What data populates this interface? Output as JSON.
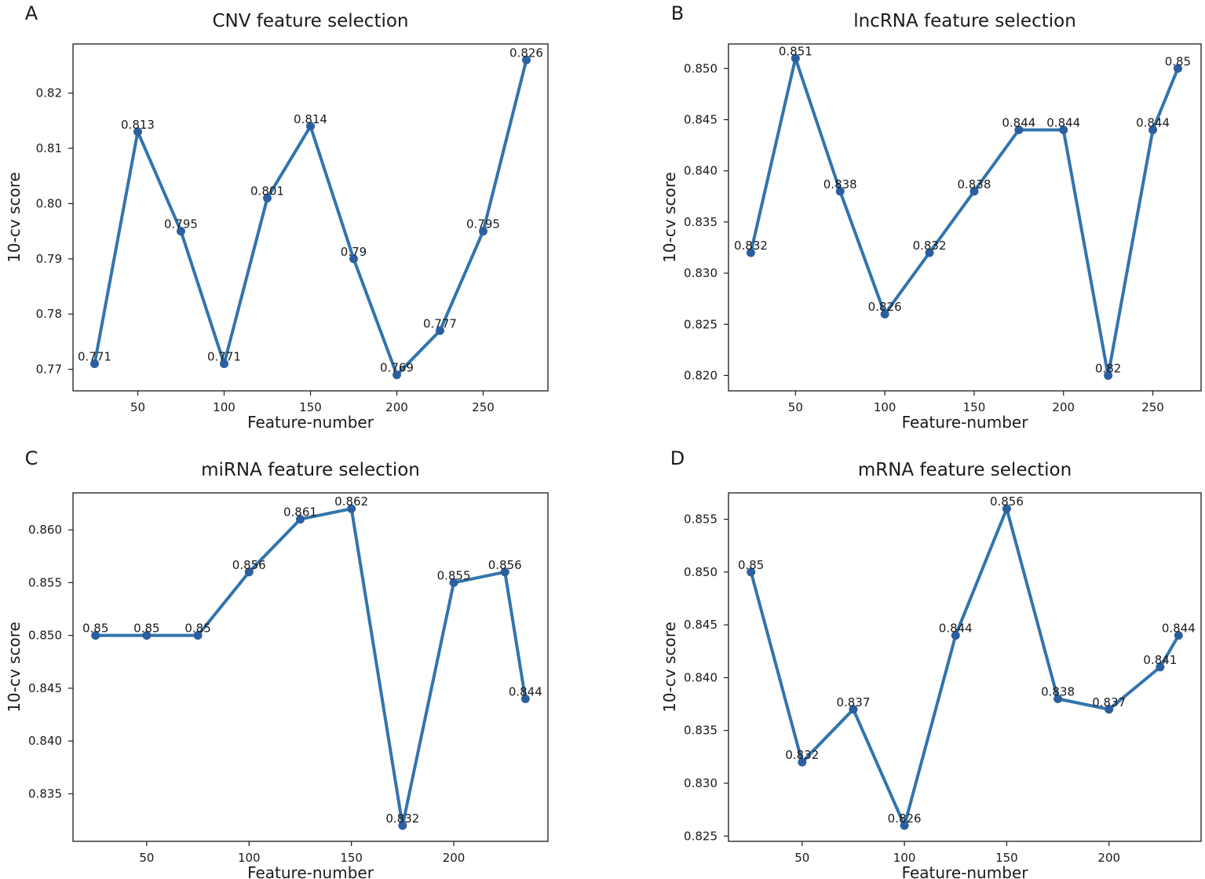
{
  "colors": {
    "line": "#3274ad",
    "marker": "#2c5fa0",
    "text": "#1a1a1a"
  },
  "chart_data": [
    {
      "panel": "A",
      "type": "line",
      "title": "CNV feature selection",
      "xlabel": "Feature-number",
      "ylabel": "10-cv score",
      "x": [
        25,
        50,
        75,
        100,
        125,
        150,
        175,
        200,
        225,
        250,
        275
      ],
      "y": [
        0.771,
        0.813,
        0.795,
        0.771,
        0.801,
        0.814,
        0.79,
        0.769,
        0.777,
        0.795,
        0.826
      ],
      "point_labels": [
        "0.771",
        "0.813",
        "0.795",
        "0.771",
        "0.801",
        "0.814",
        "0.79",
        "0.769",
        "0.777",
        "0.795",
        "0.826"
      ],
      "xlim": [
        12.5,
        287.5
      ],
      "ylim": [
        0.7661,
        0.8289
      ],
      "xticks": [
        50,
        100,
        150,
        200,
        250
      ],
      "xtick_labels": [
        "50",
        "100",
        "150",
        "200",
        "250"
      ],
      "yticks": [
        0.77,
        0.78,
        0.79,
        0.8,
        0.81,
        0.82
      ],
      "ytick_labels": [
        "0.77",
        "0.78",
        "0.79",
        "0.80",
        "0.81",
        "0.82"
      ],
      "grid": false
    },
    {
      "panel": "B",
      "type": "line",
      "title": "lncRNA feature selection",
      "xlabel": "Feature-number",
      "ylabel": "10-cv score",
      "x": [
        25,
        50,
        75,
        100,
        125,
        150,
        175,
        200,
        225,
        250,
        264
      ],
      "y": [
        0.832,
        0.851,
        0.838,
        0.826,
        0.832,
        0.838,
        0.844,
        0.844,
        0.82,
        0.844,
        0.85
      ],
      "point_labels": [
        "0.832",
        "0.851",
        "0.838",
        "0.826",
        "0.832",
        "0.838",
        "0.844",
        "0.844",
        "0.82",
        "0.844",
        "0.85"
      ],
      "xlim": [
        12.5,
        277
      ],
      "ylim": [
        0.8185,
        0.8524
      ],
      "xticks": [
        50,
        100,
        150,
        200,
        250
      ],
      "xtick_labels": [
        "50",
        "100",
        "150",
        "200",
        "250"
      ],
      "yticks": [
        0.82,
        0.825,
        0.83,
        0.835,
        0.84,
        0.845,
        0.85
      ],
      "ytick_labels": [
        "0.820",
        "0.825",
        "0.830",
        "0.835",
        "0.840",
        "0.845",
        "0.850"
      ],
      "grid": false
    },
    {
      "panel": "C",
      "type": "line",
      "title": "miRNA feature selection",
      "xlabel": "Feature-number",
      "ylabel": "10-cv score",
      "x": [
        25,
        50,
        75,
        100,
        125,
        150,
        175,
        200,
        225,
        235
      ],
      "y": [
        0.85,
        0.85,
        0.85,
        0.856,
        0.861,
        0.862,
        0.832,
        0.855,
        0.856,
        0.844
      ],
      "point_labels": [
        "0.85",
        "0.85",
        "0.85",
        "0.856",
        "0.861",
        "0.862",
        "0.832",
        "0.855",
        "0.856",
        "0.844"
      ],
      "xlim": [
        14,
        246
      ],
      "ylim": [
        0.8305,
        0.8635
      ],
      "xticks": [
        50,
        100,
        150,
        200
      ],
      "xtick_labels": [
        "50",
        "100",
        "150",
        "200"
      ],
      "yticks": [
        0.835,
        0.84,
        0.845,
        0.85,
        0.855,
        0.86
      ],
      "ytick_labels": [
        "0.835",
        "0.840",
        "0.845",
        "0.850",
        "0.855",
        "0.860"
      ],
      "grid": false
    },
    {
      "panel": "D",
      "type": "line",
      "title": "mRNA feature selection",
      "xlabel": "Feature-number",
      "ylabel": "10-cv score",
      "x": [
        25,
        50,
        75,
        100,
        125,
        150,
        175,
        200,
        225,
        234
      ],
      "y": [
        0.85,
        0.832,
        0.837,
        0.826,
        0.844,
        0.856,
        0.838,
        0.837,
        0.841,
        0.844
      ],
      "point_labels": [
        "0.85",
        "0.832",
        "0.837",
        "0.826",
        "0.844",
        "0.856",
        "0.838",
        "0.837",
        "0.841",
        "0.844"
      ],
      "xlim": [
        14,
        245
      ],
      "ylim": [
        0.8245,
        0.8575
      ],
      "xticks": [
        50,
        100,
        150,
        200
      ],
      "xtick_labels": [
        "50",
        "100",
        "150",
        "200"
      ],
      "yticks": [
        0.825,
        0.83,
        0.835,
        0.84,
        0.845,
        0.85,
        0.855
      ],
      "ytick_labels": [
        "0.825",
        "0.830",
        "0.835",
        "0.840",
        "0.845",
        "0.850",
        "0.855"
      ],
      "grid": false
    }
  ]
}
